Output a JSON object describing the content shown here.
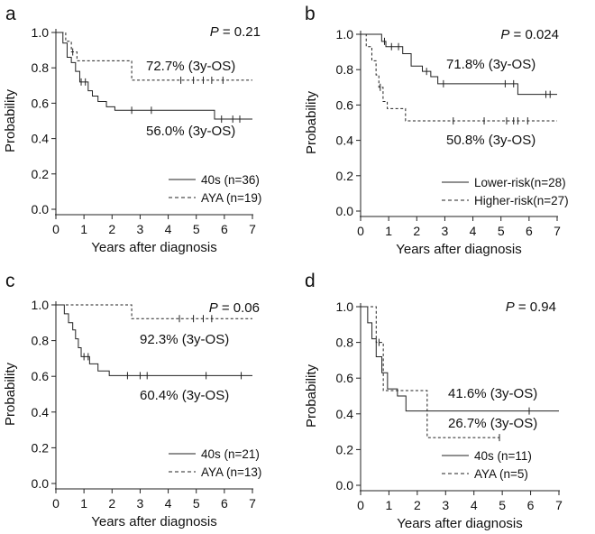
{
  "chart_data": [
    {
      "panel_label": "a",
      "type": "line",
      "chart_subtype": "kaplan-meier",
      "p_value": {
        "prefix": "P",
        "value": "= 0.21"
      },
      "xlabel": "Years after diagnosis",
      "ylabel": "Probability",
      "xlim": [
        0,
        7
      ],
      "ylim": [
        0,
        1
      ],
      "x_ticks": [
        "0",
        "1",
        "2",
        "3",
        "4",
        "5",
        "6",
        "7"
      ],
      "y_ticks": [
        "0.0",
        "0.2",
        "0.4",
        "0.6",
        "0.8",
        "1.0"
      ],
      "legend_position": "bottom-right",
      "series": [
        {
          "name": "40s (n=36)",
          "line_style": "solid",
          "steps": [
            [
              0,
              1.0
            ],
            [
              0.25,
              0.94
            ],
            [
              0.4,
              0.86
            ],
            [
              0.55,
              0.83
            ],
            [
              0.7,
              0.78
            ],
            [
              0.85,
              0.72
            ],
            [
              1.15,
              0.67
            ],
            [
              1.3,
              0.64
            ],
            [
              1.5,
              0.61
            ],
            [
              1.8,
              0.58
            ],
            [
              2.1,
              0.56
            ],
            [
              5.65,
              0.51
            ],
            [
              7,
              0.51
            ]
          ],
          "censored": [
            [
              0.9,
              0.72
            ],
            [
              1.05,
              0.72
            ],
            [
              2.7,
              0.56
            ],
            [
              3.4,
              0.56
            ],
            [
              5.9,
              0.51
            ],
            [
              6.3,
              0.51
            ],
            [
              6.55,
              0.51
            ]
          ],
          "annotation": "56.0% (3y-OS)"
        },
        {
          "name": "AYA (n=19)",
          "line_style": "dashed",
          "steps": [
            [
              0,
              1.0
            ],
            [
              0.35,
              0.95
            ],
            [
              0.55,
              0.89
            ],
            [
              0.75,
              0.84
            ],
            [
              2.7,
              0.73
            ],
            [
              7,
              0.73
            ]
          ],
          "censored": [
            [
              0.6,
              0.89
            ],
            [
              4.45,
              0.73
            ],
            [
              4.9,
              0.73
            ],
            [
              5.25,
              0.73
            ],
            [
              5.55,
              0.73
            ],
            [
              5.95,
              0.73
            ]
          ],
          "annotation": "72.7% (3y-OS)"
        }
      ]
    },
    {
      "panel_label": "b",
      "type": "line",
      "chart_subtype": "kaplan-meier",
      "p_value": {
        "prefix": "P",
        "value": "= 0.024"
      },
      "xlabel": "Years after diagnosis",
      "ylabel": "Probability",
      "xlim": [
        0,
        7
      ],
      "ylim": [
        0,
        1
      ],
      "x_ticks": [
        "0",
        "1",
        "2",
        "3",
        "4",
        "5",
        "6",
        "7"
      ],
      "y_ticks": [
        "0.0",
        "0.2",
        "0.4",
        "0.6",
        "0.8",
        "1.0"
      ],
      "legend_position": "bottom-right",
      "series": [
        {
          "name": "Lower-risk(n=28)",
          "line_style": "solid",
          "steps": [
            [
              0,
              1.0
            ],
            [
              0.75,
              0.96
            ],
            [
              0.9,
              0.93
            ],
            [
              1.5,
              0.89
            ],
            [
              1.8,
              0.82
            ],
            [
              2.2,
              0.79
            ],
            [
              2.5,
              0.76
            ],
            [
              2.75,
              0.72
            ],
            [
              5.6,
              0.66
            ],
            [
              7,
              0.66
            ]
          ],
          "censored": [
            [
              0.85,
              0.96
            ],
            [
              1.1,
              0.93
            ],
            [
              1.35,
              0.93
            ],
            [
              2.35,
              0.79
            ],
            [
              2.95,
              0.72
            ],
            [
              5.15,
              0.72
            ],
            [
              5.45,
              0.72
            ],
            [
              6.6,
              0.66
            ],
            [
              6.75,
              0.66
            ]
          ],
          "annotation": "71.8% (3y-OS)"
        },
        {
          "name": "Higher-risk(n=27)",
          "line_style": "dashed",
          "steps": [
            [
              0,
              1.0
            ],
            [
              0.2,
              0.93
            ],
            [
              0.4,
              0.85
            ],
            [
              0.55,
              0.77
            ],
            [
              0.65,
              0.7
            ],
            [
              0.8,
              0.62
            ],
            [
              0.95,
              0.58
            ],
            [
              1.6,
              0.51
            ],
            [
              7,
              0.51
            ]
          ],
          "censored": [
            [
              0.7,
              0.7
            ],
            [
              3.3,
              0.51
            ],
            [
              4.4,
              0.51
            ],
            [
              5.2,
              0.51
            ],
            [
              5.45,
              0.51
            ],
            [
              5.6,
              0.51
            ],
            [
              5.95,
              0.51
            ]
          ],
          "annotation": "50.8% (3y-OS)"
        }
      ]
    },
    {
      "panel_label": "c",
      "type": "line",
      "chart_subtype": "kaplan-meier",
      "p_value": {
        "prefix": "P",
        "value": "= 0.06"
      },
      "xlabel": "Years after diagnosis",
      "ylabel": "Probability",
      "xlim": [
        0,
        7
      ],
      "ylim": [
        0,
        1
      ],
      "x_ticks": [
        "0",
        "1",
        "2",
        "3",
        "4",
        "5",
        "6",
        "7"
      ],
      "y_ticks": [
        "0.0",
        "0.2",
        "0.4",
        "0.6",
        "0.8",
        "1.0"
      ],
      "legend_position": "bottom-right",
      "series": [
        {
          "name": "40s (n=21)",
          "line_style": "solid",
          "steps": [
            [
              0,
              1.0
            ],
            [
              0.3,
              0.95
            ],
            [
              0.45,
              0.9
            ],
            [
              0.6,
              0.86
            ],
            [
              0.7,
              0.81
            ],
            [
              0.8,
              0.76
            ],
            [
              0.9,
              0.71
            ],
            [
              1.2,
              0.67
            ],
            [
              1.5,
              0.63
            ],
            [
              1.9,
              0.604
            ],
            [
              7,
              0.604
            ]
          ],
          "censored": [
            [
              1.0,
              0.71
            ],
            [
              1.15,
              0.71
            ],
            [
              2.55,
              0.604
            ],
            [
              3.0,
              0.604
            ],
            [
              3.25,
              0.604
            ],
            [
              5.35,
              0.604
            ],
            [
              6.6,
              0.604
            ]
          ],
          "annotation": "60.4% (3y-OS)"
        },
        {
          "name": "AYA (n=13)",
          "line_style": "dashed",
          "steps": [
            [
              0,
              1.0
            ],
            [
              2.7,
              0.923
            ],
            [
              7,
              0.923
            ]
          ],
          "censored": [
            [
              4.4,
              0.923
            ],
            [
              4.9,
              0.923
            ],
            [
              5.25,
              0.923
            ],
            [
              5.55,
              0.923
            ]
          ],
          "annotation": "92.3% (3y-OS)"
        }
      ]
    },
    {
      "panel_label": "d",
      "type": "line",
      "chart_subtype": "kaplan-meier",
      "p_value": {
        "prefix": "P",
        "value": "= 0.94"
      },
      "xlabel": "Years after diagnosis",
      "ylabel": "Probability",
      "xlim": [
        0,
        7
      ],
      "ylim": [
        0,
        1
      ],
      "x_ticks": [
        "0",
        "1",
        "2",
        "3",
        "4",
        "5",
        "6",
        "7"
      ],
      "y_ticks": [
        "0.0",
        "0.2",
        "0.4",
        "0.6",
        "0.8",
        "1.0"
      ],
      "legend_position": "bottom-right",
      "series": [
        {
          "name": "40s (n=11)",
          "line_style": "solid",
          "steps": [
            [
              0,
              1.0
            ],
            [
              0.25,
              0.91
            ],
            [
              0.4,
              0.82
            ],
            [
              0.55,
              0.72
            ],
            [
              0.75,
              0.63
            ],
            [
              0.95,
              0.54
            ],
            [
              1.3,
              0.5
            ],
            [
              1.6,
              0.416
            ],
            [
              7,
              0.416
            ]
          ],
          "censored": [
            [
              5.95,
              0.416
            ]
          ],
          "annotation": "41.6% (3y-OS)"
        },
        {
          "name": "AYA (n=5)",
          "line_style": "dashed",
          "steps": [
            [
              0,
              1.0
            ],
            [
              0.55,
              0.8
            ],
            [
              0.8,
              0.53
            ],
            [
              2.35,
              0.267
            ],
            [
              4.9,
              0.267
            ]
          ],
          "censored": [
            [
              0.65,
              0.8
            ],
            [
              4.9,
              0.267
            ]
          ],
          "annotation": "26.7% (3y-OS)"
        }
      ]
    }
  ]
}
